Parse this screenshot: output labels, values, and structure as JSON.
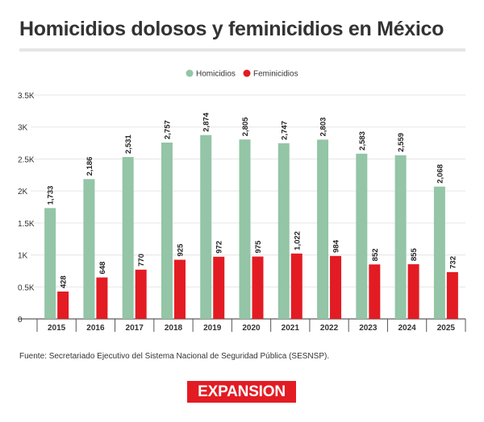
{
  "title": "Homicidios dolosos y feminicidios en México",
  "source": "Fuente: Secretariado Ejecutivo del Sistema Nacional de Seguridad Pública (SESNSP).",
  "logo_text": "EXPANSION",
  "colors": {
    "homicidios": "#93c5a6",
    "feminicidios": "#e31b23",
    "logo": "#e31b23"
  },
  "chart_data": {
    "type": "bar",
    "title": "Homicidios dolosos y feminicidios en México",
    "xlabel": "",
    "ylabel": "",
    "categories": [
      "2015",
      "2016",
      "2017",
      "2018",
      "2019",
      "2020",
      "2021",
      "2022",
      "2023",
      "2024",
      "2025"
    ],
    "series": [
      {
        "name": "Homicidios",
        "values": [
          1733,
          2186,
          2531,
          2757,
          2874,
          2805,
          2747,
          2803,
          2583,
          2559,
          2068
        ],
        "labels": [
          "1,733",
          "2,186",
          "2,531",
          "2,757",
          "2,874",
          "2,805",
          "2,747",
          "2,803",
          "2,583",
          "2,559",
          "2,068"
        ]
      },
      {
        "name": "Feminicidios",
        "values": [
          428,
          648,
          770,
          925,
          972,
          975,
          1022,
          984,
          852,
          855,
          732
        ],
        "labels": [
          "428",
          "648",
          "770",
          "925",
          "972",
          "975",
          "1,022",
          "984",
          "852",
          "855",
          "732"
        ]
      }
    ],
    "ylim": [
      0,
      3500
    ],
    "yticks": [
      0,
      500,
      1000,
      1500,
      2000,
      2500,
      3000,
      3500
    ],
    "ytick_labels": [
      "0",
      "0.5K",
      "1K",
      "1.5K",
      "2K",
      "2.5K",
      "3K",
      "3.5K"
    ],
    "legend_position": "top-center",
    "grid": true
  }
}
